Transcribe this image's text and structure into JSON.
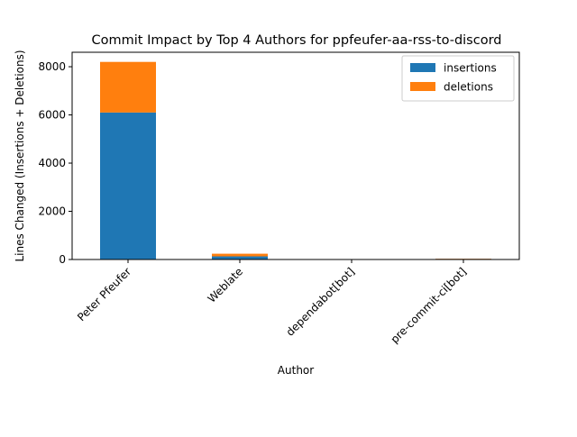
{
  "chart_data": {
    "type": "bar",
    "stacked": true,
    "title": "Commit Impact by Top 4 Authors for ppfeufer-aa-rss-to-discord",
    "xlabel": "Author",
    "ylabel": "Lines Changed (Insertions + Deletions)",
    "categories": [
      "Peter Pfeufer",
      "Weblate",
      "dependabot[bot]",
      "pre-commit-ci[bot]"
    ],
    "series": [
      {
        "name": "insertions",
        "color": "#1f77b4",
        "values": [
          6100,
          130,
          0,
          25
        ]
      },
      {
        "name": "deletions",
        "color": "#ff7f0e",
        "values": [
          2100,
          110,
          0,
          10
        ]
      }
    ],
    "ylim": [
      0,
      8600
    ],
    "yticks": [
      0,
      2000,
      4000,
      6000,
      8000
    ],
    "grid": false,
    "legend_position": "top-right"
  }
}
